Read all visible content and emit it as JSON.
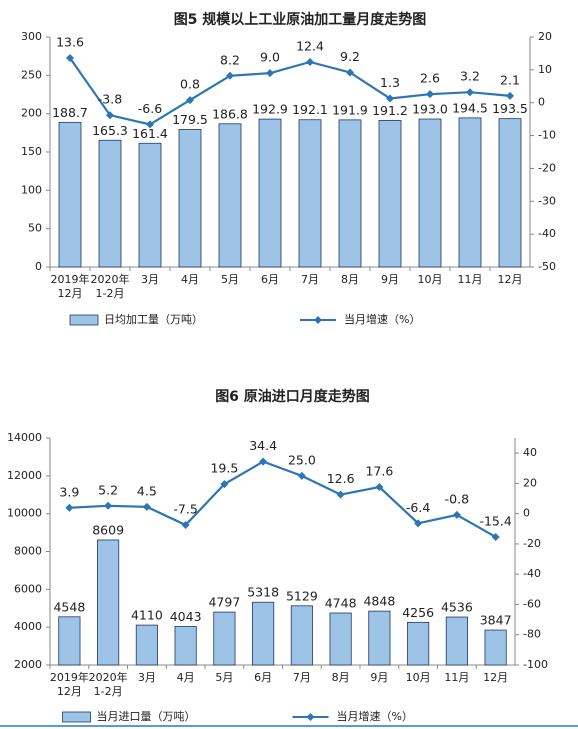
{
  "chart_data": [
    {
      "type": "bar-line",
      "title": "图5  规模以上工业原油加工量月度走势图",
      "categories": [
        [
          "2019年",
          "12月"
        ],
        [
          "2020年",
          "1-2月"
        ],
        [
          "3月"
        ],
        [
          "4月"
        ],
        [
          "5月"
        ],
        [
          "6月"
        ],
        [
          "7月"
        ],
        [
          "8月"
        ],
        [
          "9月"
        ],
        [
          "10月"
        ],
        [
          "11月"
        ],
        [
          "12月"
        ]
      ],
      "series": [
        {
          "name": "日均加工量（万吨）",
          "color": "#9dc3e6",
          "values": [
            188.7,
            165.3,
            161.4,
            179.5,
            186.8,
            192.9,
            192.1,
            191.9,
            191.2,
            193.0,
            194.5,
            193.5
          ],
          "value_labels": [
            "188.7",
            "165.3",
            "161.4",
            "179.5",
            "186.8",
            "192.9",
            "192.1",
            "191.9",
            "191.2",
            "193.0",
            "194.5",
            "193.5"
          ]
        },
        {
          "name": "当月增速（%）",
          "color": "#2e75b6",
          "axis": "y2",
          "values": [
            13.6,
            -3.8,
            -6.6,
            0.8,
            8.2,
            9.0,
            12.4,
            9.2,
            1.3,
            2.6,
            3.2,
            2.1
          ],
          "value_labels": [
            "13.6",
            "-3.8",
            "-6.6",
            "0.8",
            "8.2",
            "9.0",
            "12.4",
            "9.2",
            "1.3",
            "2.6",
            "3.2",
            "2.1"
          ]
        }
      ],
      "ylim": [
        0,
        300
      ],
      "yticks": [
        0,
        50,
        100,
        150,
        200,
        250,
        300
      ],
      "y2lim": [
        -50,
        20
      ],
      "y2ticks": [
        -50,
        -40,
        -30,
        -20,
        -10,
        0,
        10,
        20
      ]
    },
    {
      "type": "bar-line",
      "title": "图6  原油进口月度走势图",
      "categories": [
        [
          "2019年",
          "12月"
        ],
        [
          "2020年",
          "1-2月"
        ],
        [
          "3月"
        ],
        [
          "4月"
        ],
        [
          "5月"
        ],
        [
          "6月"
        ],
        [
          "7月"
        ],
        [
          "8月"
        ],
        [
          "9月"
        ],
        [
          "10月"
        ],
        [
          "11月"
        ],
        [
          "12月"
        ]
      ],
      "series": [
        {
          "name": "当月进口量（万吨）",
          "color": "#9dc3e6",
          "values": [
            4548,
            8609,
            4110,
            4043,
            4797,
            5318,
            5129,
            4748,
            4848,
            4256,
            4536,
            3847
          ]
        },
        {
          "name": "当月增速（%）",
          "color": "#2e75b6",
          "axis": "y2",
          "values": [
            3.9,
            5.2,
            4.5,
            -7.5,
            19.5,
            34.4,
            25.0,
            12.6,
            17.6,
            -6.4,
            -0.8,
            -15.4
          ],
          "value_labels": [
            "3.9",
            "5.2",
            "4.5",
            "-7.5",
            "19.5",
            "34.4",
            "25.0",
            "12.6",
            "17.6",
            "-6.4",
            "-0.8",
            "-15.4"
          ]
        }
      ],
      "ylim": [
        2000,
        14000
      ],
      "yticks": [
        2000,
        4000,
        6000,
        8000,
        10000,
        12000,
        14000
      ],
      "y2lim": [
        -100,
        50
      ],
      "y2ticks": [
        -100,
        -80,
        -60,
        -40,
        -20,
        0,
        20,
        40
      ]
    }
  ]
}
